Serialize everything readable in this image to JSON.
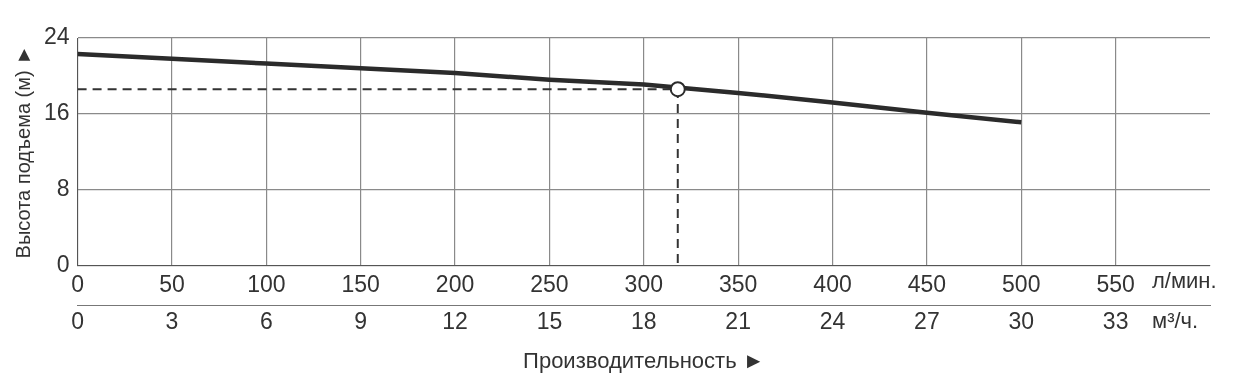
{
  "chart_data": {
    "type": "line",
    "xlabel": "Производительность ►",
    "ylabel": "Высота подъема (м) ►",
    "xlim": [
      0,
      600
    ],
    "xticks": [
      0,
      50,
      100,
      150,
      200,
      250,
      300,
      350,
      400,
      450,
      500,
      550
    ],
    "x2lim": [
      0,
      36
    ],
    "x2ticks": [
      0,
      3,
      6,
      9,
      12,
      15,
      18,
      21,
      24,
      27,
      30,
      33
    ],
    "ylim": [
      0,
      24
    ],
    "yticks": [
      0,
      8,
      16,
      24
    ],
    "grid": true,
    "legend": false,
    "annotations": [
      "л/мин.",
      "м³/ч."
    ],
    "series": [
      {
        "color": "#2b2b2b",
        "marker": "none",
        "line_style": "solid",
        "x": [
          0,
          50,
          100,
          150,
          200,
          250,
          300,
          350,
          400,
          450,
          500
        ],
        "values": [
          22.3,
          21.8,
          21.3,
          20.8,
          20.3,
          19.6,
          19.1,
          18.2,
          17.2,
          16.1,
          15.1
        ]
      },
      {
        "color": "#333333",
        "marker": "none",
        "line_style": "dashed",
        "x": [
          0,
          318,
          318
        ],
        "values": [
          18.6,
          18.6,
          0
        ]
      },
      {
        "type": "scatter",
        "color": "#2b2b2b",
        "marker": "circle",
        "x": [
          318
        ],
        "values": [
          18.6
        ]
      }
    ]
  }
}
